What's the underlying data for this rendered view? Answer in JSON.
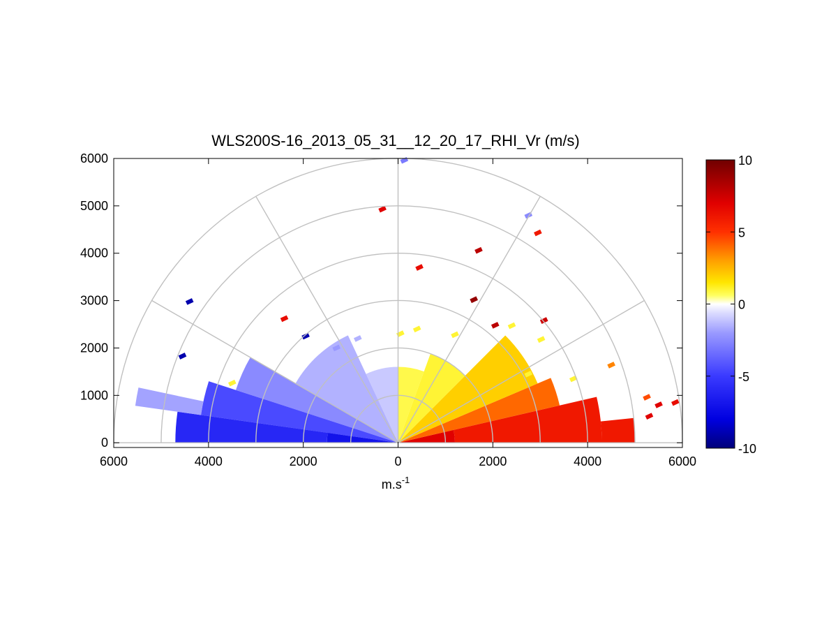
{
  "chart_data": {
    "type": "heatmap",
    "subtype": "polar-rhi-half-plane",
    "title": "WLS200S-16_2013_05_31__12_20_17_RHI_Vr (m/s)",
    "xlabel": "m.s",
    "xlabel_superscript": "-1",
    "ylabel": "",
    "xlim": [
      -6000,
      6000
    ],
    "ylim": [
      -100,
      6000
    ],
    "x_ticks": [
      -6000,
      -4000,
      -2000,
      0,
      2000,
      4000,
      6000
    ],
    "x_tick_labels": [
      "6000",
      "4000",
      "2000",
      "0",
      "2000",
      "4000",
      "6000"
    ],
    "y_ticks": [
      0,
      1000,
      2000,
      3000,
      4000,
      5000,
      6000
    ],
    "y_tick_labels": [
      "0",
      "1000",
      "2000",
      "3000",
      "4000",
      "5000",
      "6000"
    ],
    "range_rings": [
      1000,
      2000,
      3000,
      4000,
      5000,
      6000
    ],
    "spokes_deg": [
      0,
      30,
      60,
      90,
      120,
      150,
      180
    ],
    "grid": true,
    "colormap": "blue-white-yellow-red",
    "colormap_stops": [
      {
        "v": -10,
        "c": "#00007a"
      },
      {
        "v": -8,
        "c": "#0000e0"
      },
      {
        "v": -5,
        "c": "#3a3aff"
      },
      {
        "v": -2,
        "c": "#9a9aff"
      },
      {
        "v": -0.6,
        "c": "#dcdcff"
      },
      {
        "v": 0,
        "c": "#ffffff"
      },
      {
        "v": 0.6,
        "c": "#ffff60"
      },
      {
        "v": 1.5,
        "c": "#ffe600"
      },
      {
        "v": 3,
        "c": "#ffa000"
      },
      {
        "v": 5,
        "c": "#ff3000"
      },
      {
        "v": 7,
        "c": "#e00000"
      },
      {
        "v": 10,
        "c": "#700000"
      }
    ],
    "colorbar": {
      "min": -10,
      "max": 10,
      "ticks": [
        10,
        5,
        0,
        -5,
        -10
      ],
      "tick_labels": [
        "10",
        "5",
        "0",
        "-5",
        "-10"
      ],
      "location": "right"
    },
    "sectors": [
      {
        "el_from": 0,
        "el_to": 13,
        "r_from": 0,
        "r_to": 1200,
        "v": 7
      },
      {
        "el_from": 0,
        "el_to": 13,
        "r_from": 1200,
        "r_to": 4300,
        "v": 6
      },
      {
        "el_from": 0,
        "el_to": 6,
        "r_from": 4300,
        "r_to": 5000,
        "v": 6
      },
      {
        "el_from": 13,
        "el_to": 23,
        "r_from": 0,
        "r_to": 3500,
        "v": 4
      },
      {
        "el_from": 23,
        "el_to": 45,
        "r_from": 0,
        "r_to": 3200,
        "v": 2
      },
      {
        "el_from": 45,
        "el_to": 70,
        "r_from": 0,
        "r_to": 2000,
        "v": 1
      },
      {
        "el_from": 70,
        "el_to": 90,
        "r_from": 0,
        "r_to": 1600,
        "v": 0.8
      },
      {
        "el_from": 90,
        "el_to": 115,
        "r_from": 0,
        "r_to": 1600,
        "v": -1
      },
      {
        "el_from": 115,
        "el_to": 150,
        "r_from": 0,
        "r_to": 2500,
        "v": -1.5
      },
      {
        "el_from": 150,
        "el_to": 162,
        "r_from": 0,
        "r_to": 3600,
        "v": -2.5
      },
      {
        "el_from": 162,
        "el_to": 172,
        "r_from": 0,
        "r_to": 4200,
        "v": -4.5
      },
      {
        "el_from": 172,
        "el_to": 180,
        "r_from": 0,
        "r_to": 1500,
        "v": -7
      },
      {
        "el_from": 172,
        "el_to": 180,
        "r_from": 1500,
        "r_to": 4700,
        "v": -6
      },
      {
        "el_from": 168,
        "el_to": 172,
        "r_from": 4200,
        "r_to": 5600,
        "v": -1.8
      }
    ],
    "outliers": [
      {
        "x": 130,
        "y": 5960,
        "v": -3
      },
      {
        "x": -330,
        "y": 4930,
        "v": 7
      },
      {
        "x": 2750,
        "y": 4800,
        "v": -2.5
      },
      {
        "x": 2950,
        "y": 4430,
        "v": 6
      },
      {
        "x": 1700,
        "y": 4060,
        "v": 8
      },
      {
        "x": 450,
        "y": 3700,
        "v": 6.5
      },
      {
        "x": 1600,
        "y": 3020,
        "v": 9
      },
      {
        "x": 2050,
        "y": 2480,
        "v": 8
      },
      {
        "x": 2400,
        "y": 2470,
        "v": 1
      },
      {
        "x": 3080,
        "y": 2580,
        "v": 7.5
      },
      {
        "x": 3020,
        "y": 2180,
        "v": 1
      },
      {
        "x": 4500,
        "y": 1640,
        "v": 3.5
      },
      {
        "x": 5250,
        "y": 960,
        "v": 4.5
      },
      {
        "x": 5500,
        "y": 800,
        "v": 7
      },
      {
        "x": 5850,
        "y": 850,
        "v": 6.5
      },
      {
        "x": 5300,
        "y": 560,
        "v": 7
      },
      {
        "x": -4400,
        "y": 2980,
        "v": -9
      },
      {
        "x": -4550,
        "y": 1830,
        "v": -9
      },
      {
        "x": -2400,
        "y": 2620,
        "v": 6.5
      },
      {
        "x": -1950,
        "y": 2250,
        "v": -9
      },
      {
        "x": -1300,
        "y": 2000,
        "v": -2
      },
      {
        "x": -850,
        "y": 2200,
        "v": -1.5
      },
      {
        "x": 50,
        "y": 2300,
        "v": 1
      },
      {
        "x": 400,
        "y": 2400,
        "v": 1
      },
      {
        "x": 1200,
        "y": 2280,
        "v": 1
      },
      {
        "x": -3500,
        "y": 1260,
        "v": 1
      },
      {
        "x": 2750,
        "y": 1450,
        "v": 1
      },
      {
        "x": 3700,
        "y": 1350,
        "v": 1
      }
    ]
  }
}
